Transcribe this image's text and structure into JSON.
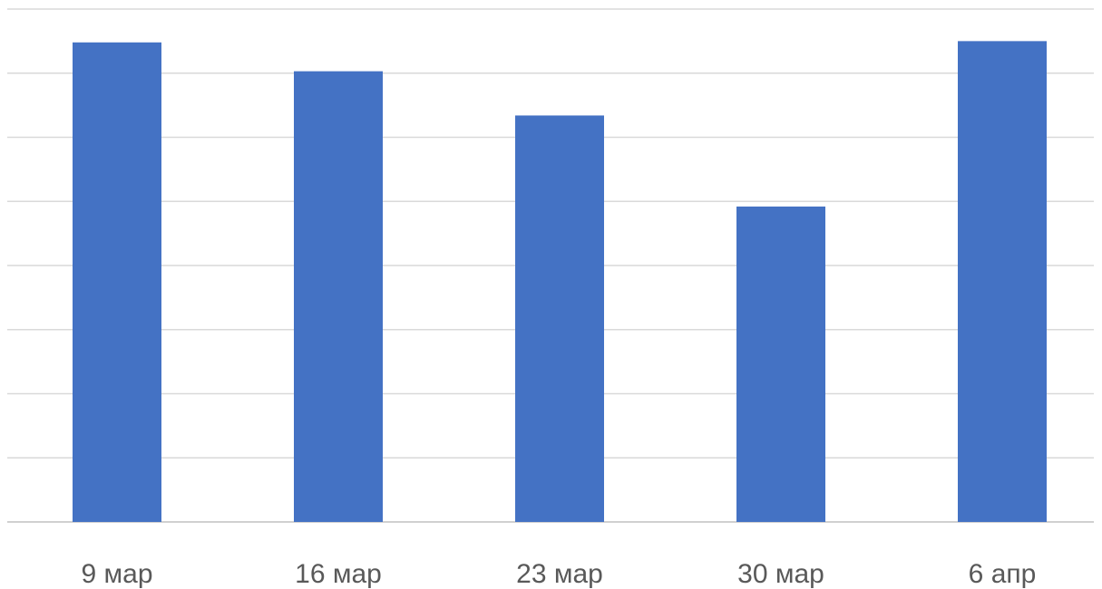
{
  "chart_data": {
    "type": "bar",
    "categories": [
      "9 мар",
      "16 мар",
      "23 мар",
      "30 мар",
      "6 апр"
    ],
    "values": [
      7.48,
      7.03,
      6.34,
      4.92,
      7.5
    ],
    "title": "",
    "xlabel": "",
    "ylabel": "",
    "ylim": [
      0,
      8
    ],
    "grid": true,
    "y_tick_labels_visible": false,
    "legend": "none",
    "colors": {
      "bar": "#4472C4",
      "grid": "#d9d9d9",
      "tick_text": "#595959"
    }
  }
}
